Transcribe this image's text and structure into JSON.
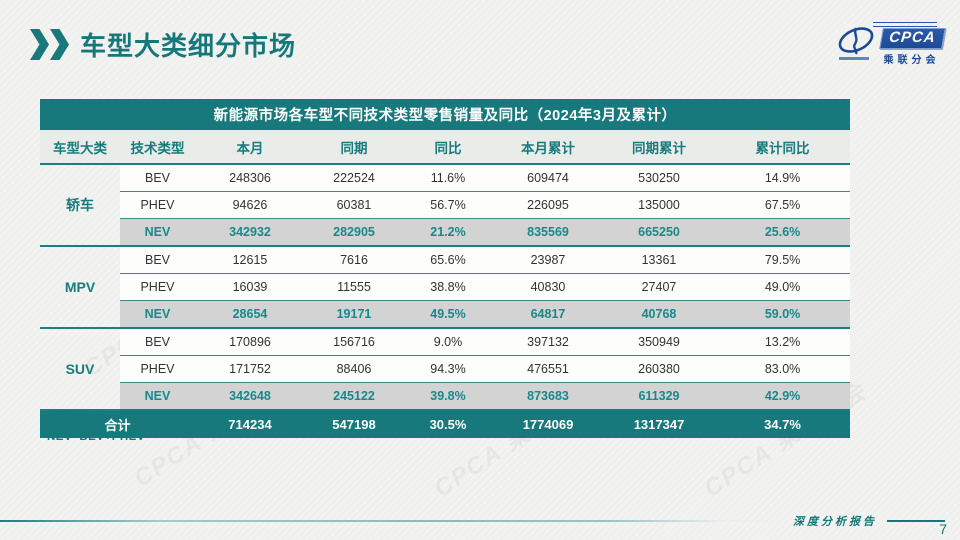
{
  "page": {
    "title": "车型大类细分市场",
    "footnote": "*NEV=BEV+PHEV",
    "footer_label": "深度分析报告",
    "page_number": "7"
  },
  "logo": {
    "badge_label": "CPCA",
    "subtitle": "乘联分会"
  },
  "watermark": {
    "text": "CPCA 乘联分会"
  },
  "colors": {
    "teal": "#17797b",
    "teal_text": "#187b7d",
    "nev_text": "#17898b",
    "nev_row_bg": "#d3d3d3",
    "header_row_bg": "#e9ece9",
    "logo_blue": "#1c4a96"
  },
  "chart_data": {
    "type": "table",
    "title": "新能源市场各车型不同技术类型零售销量及同比（2024年3月及累计）",
    "columns": [
      "车型大类",
      "技术类型",
      "本月",
      "同期",
      "同比",
      "本月累计",
      "同期累计",
      "累计同比"
    ],
    "groups": [
      {
        "category": "轿车",
        "rows": [
          {
            "tech": "BEV",
            "highlight": false,
            "values": [
              "248306",
              "222524",
              "11.6%",
              "609474",
              "530250",
              "14.9%"
            ]
          },
          {
            "tech": "PHEV",
            "highlight": false,
            "values": [
              "94626",
              "60381",
              "56.7%",
              "226095",
              "135000",
              "67.5%"
            ]
          },
          {
            "tech": "NEV",
            "highlight": true,
            "values": [
              "342932",
              "282905",
              "21.2%",
              "835569",
              "665250",
              "25.6%"
            ]
          }
        ]
      },
      {
        "category": "MPV",
        "rows": [
          {
            "tech": "BEV",
            "highlight": false,
            "values": [
              "12615",
              "7616",
              "65.6%",
              "23987",
              "13361",
              "79.5%"
            ]
          },
          {
            "tech": "PHEV",
            "highlight": false,
            "values": [
              "16039",
              "11555",
              "38.8%",
              "40830",
              "27407",
              "49.0%"
            ]
          },
          {
            "tech": "NEV",
            "highlight": true,
            "values": [
              "28654",
              "19171",
              "49.5%",
              "64817",
              "40768",
              "59.0%"
            ]
          }
        ]
      },
      {
        "category": "SUV",
        "rows": [
          {
            "tech": "BEV",
            "highlight": false,
            "values": [
              "170896",
              "156716",
              "9.0%",
              "397132",
              "350949",
              "13.2%"
            ]
          },
          {
            "tech": "PHEV",
            "highlight": false,
            "values": [
              "171752",
              "88406",
              "94.3%",
              "476551",
              "260380",
              "83.0%"
            ]
          },
          {
            "tech": "NEV",
            "highlight": true,
            "values": [
              "342648",
              "245122",
              "39.8%",
              "873683",
              "611329",
              "42.9%"
            ]
          }
        ]
      }
    ],
    "total": {
      "label": "合计",
      "values": [
        "714234",
        "547198",
        "30.5%",
        "1774069",
        "1317347",
        "34.7%"
      ]
    }
  }
}
